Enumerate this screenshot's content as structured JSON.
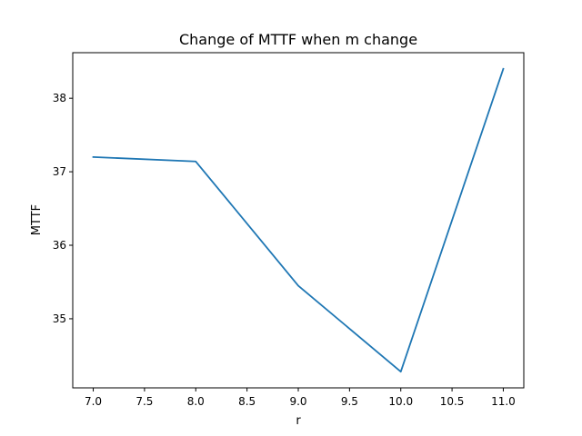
{
  "chart_data": {
    "type": "line",
    "title": "Change of MTTF when m change",
    "xlabel": "r",
    "ylabel": "MTTF",
    "xlim": [
      6.8,
      11.2
    ],
    "ylim": [
      34.06,
      38.62
    ],
    "xticks": [
      7.0,
      7.5,
      8.0,
      8.5,
      9.0,
      9.5,
      10.0,
      10.5,
      11.0
    ],
    "xtick_labels": [
      "7.0",
      "7.5",
      "8.0",
      "8.5",
      "9.0",
      "9.5",
      "10.0",
      "10.5",
      "11.0"
    ],
    "yticks": [
      35,
      36,
      37,
      38
    ],
    "ytick_labels": [
      "35",
      "36",
      "37",
      "38"
    ],
    "grid": false,
    "series": [
      {
        "color": "#1f77b4",
        "x": [
          7.0,
          8.0,
          9.0,
          10.0,
          11.0
        ],
        "y": [
          37.2,
          37.14,
          35.45,
          34.28,
          38.4
        ]
      }
    ]
  }
}
